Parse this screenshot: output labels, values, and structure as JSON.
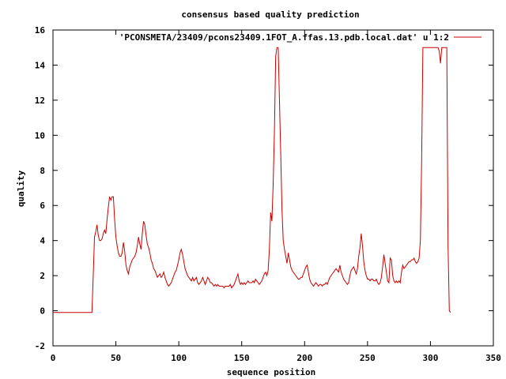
{
  "chart_data": {
    "type": "line",
    "title": "consensus based quality prediction",
    "xlabel": "sequence position",
    "ylabel": "quality",
    "xlim": [
      0,
      350
    ],
    "ylim": [
      -2,
      16
    ],
    "xticks": [
      0,
      50,
      100,
      150,
      200,
      250,
      300,
      350
    ],
    "yticks": [
      -2,
      0,
      2,
      4,
      6,
      8,
      10,
      12,
      14,
      16
    ],
    "legend_position": "top-right",
    "grid": false,
    "colors": {
      "series": "#cc0000",
      "axes": "#000000"
    },
    "series": [
      {
        "name": "'PCONSMETA/23409/pcons23409.1FOT_A.ffas.13.pdb.local.dat' u 1:2",
        "points": [
          [
            0,
            -0.1
          ],
          [
            31,
            -0.1
          ],
          [
            32,
            2.0
          ],
          [
            33,
            4.2
          ],
          [
            34,
            4.5
          ],
          [
            35,
            4.9
          ],
          [
            36,
            4.3
          ],
          [
            37,
            4.0
          ],
          [
            38,
            4.0
          ],
          [
            39,
            4.1
          ],
          [
            40,
            4.4
          ],
          [
            41,
            4.6
          ],
          [
            42,
            4.4
          ],
          [
            43,
            5.2
          ],
          [
            44,
            5.9
          ],
          [
            45,
            6.5
          ],
          [
            46,
            6.3
          ],
          [
            47,
            6.5
          ],
          [
            48,
            6.5
          ],
          [
            49,
            5.2
          ],
          [
            50,
            4.2
          ],
          [
            51,
            3.7
          ],
          [
            52,
            3.3
          ],
          [
            53,
            3.1
          ],
          [
            54,
            3.1
          ],
          [
            55,
            3.3
          ],
          [
            56,
            3.9
          ],
          [
            57,
            3.4
          ],
          [
            58,
            2.6
          ],
          [
            59,
            2.3
          ],
          [
            60,
            2.1
          ],
          [
            61,
            2.5
          ],
          [
            62,
            2.7
          ],
          [
            63,
            2.9
          ],
          [
            64,
            3.0
          ],
          [
            65,
            3.1
          ],
          [
            66,
            3.3
          ],
          [
            67,
            3.7
          ],
          [
            68,
            4.2
          ],
          [
            69,
            3.8
          ],
          [
            70,
            3.5
          ],
          [
            71,
            4.4
          ],
          [
            72,
            5.1
          ],
          [
            73,
            4.9
          ],
          [
            74,
            4.3
          ],
          [
            75,
            3.8
          ],
          [
            76,
            3.6
          ],
          [
            77,
            3.3
          ],
          [
            78,
            2.9
          ],
          [
            79,
            2.7
          ],
          [
            80,
            2.4
          ],
          [
            81,
            2.3
          ],
          [
            82,
            2.1
          ],
          [
            83,
            1.9
          ],
          [
            84,
            2.0
          ],
          [
            85,
            2.1
          ],
          [
            86,
            1.9
          ],
          [
            87,
            2.0
          ],
          [
            88,
            2.2
          ],
          [
            89,
            1.9
          ],
          [
            90,
            1.7
          ],
          [
            91,
            1.5
          ],
          [
            92,
            1.4
          ],
          [
            93,
            1.5
          ],
          [
            94,
            1.6
          ],
          [
            95,
            1.8
          ],
          [
            96,
            2.0
          ],
          [
            97,
            2.2
          ],
          [
            98,
            2.3
          ],
          [
            99,
            2.6
          ],
          [
            100,
            2.9
          ],
          [
            101,
            3.3
          ],
          [
            102,
            3.5
          ],
          [
            103,
            3.2
          ],
          [
            104,
            2.8
          ],
          [
            105,
            2.4
          ],
          [
            106,
            2.2
          ],
          [
            107,
            2.0
          ],
          [
            108,
            1.9
          ],
          [
            109,
            1.8
          ],
          [
            110,
            1.7
          ],
          [
            111,
            1.9
          ],
          [
            112,
            1.7
          ],
          [
            113,
            1.8
          ],
          [
            114,
            1.9
          ],
          [
            115,
            1.6
          ],
          [
            116,
            1.5
          ],
          [
            117,
            1.6
          ],
          [
            118,
            1.7
          ],
          [
            119,
            1.9
          ],
          [
            120,
            1.7
          ],
          [
            121,
            1.5
          ],
          [
            122,
            1.7
          ],
          [
            123,
            1.9
          ],
          [
            124,
            1.8
          ],
          [
            125,
            1.6
          ],
          [
            126,
            1.6
          ],
          [
            127,
            1.5
          ],
          [
            128,
            1.4
          ],
          [
            129,
            1.5
          ],
          [
            130,
            1.4
          ],
          [
            131,
            1.5
          ],
          [
            132,
            1.4
          ],
          [
            133,
            1.4
          ],
          [
            134,
            1.4
          ],
          [
            135,
            1.4
          ],
          [
            136,
            1.3
          ],
          [
            137,
            1.4
          ],
          [
            138,
            1.4
          ],
          [
            139,
            1.4
          ],
          [
            140,
            1.4
          ],
          [
            141,
            1.5
          ],
          [
            142,
            1.3
          ],
          [
            143,
            1.4
          ],
          [
            144,
            1.5
          ],
          [
            145,
            1.7
          ],
          [
            146,
            1.9
          ],
          [
            147,
            2.1
          ],
          [
            148,
            1.7
          ],
          [
            149,
            1.5
          ],
          [
            150,
            1.6
          ],
          [
            151,
            1.5
          ],
          [
            152,
            1.6
          ],
          [
            153,
            1.5
          ],
          [
            154,
            1.6
          ],
          [
            155,
            1.7
          ],
          [
            156,
            1.6
          ],
          [
            157,
            1.6
          ],
          [
            158,
            1.6
          ],
          [
            159,
            1.7
          ],
          [
            160,
            1.6
          ],
          [
            161,
            1.8
          ],
          [
            162,
            1.7
          ],
          [
            163,
            1.6
          ],
          [
            164,
            1.5
          ],
          [
            165,
            1.6
          ],
          [
            166,
            1.7
          ],
          [
            167,
            1.9
          ],
          [
            168,
            2.1
          ],
          [
            169,
            2.2
          ],
          [
            170,
            2.0
          ],
          [
            171,
            2.3
          ],
          [
            172,
            3.5
          ],
          [
            173,
            5.6
          ],
          [
            174,
            5.1
          ],
          [
            175,
            7.2
          ],
          [
            176,
            10.2
          ],
          [
            177,
            14.5
          ],
          [
            178,
            15.0
          ],
          [
            179,
            15.0
          ],
          [
            180,
            12.0
          ],
          [
            181,
            9.0
          ],
          [
            182,
            5.8
          ],
          [
            183,
            4.0
          ],
          [
            184,
            3.5
          ],
          [
            185,
            3.1
          ],
          [
            186,
            2.7
          ],
          [
            187,
            3.3
          ],
          [
            188,
            2.9
          ],
          [
            189,
            2.5
          ],
          [
            190,
            2.3
          ],
          [
            191,
            2.2
          ],
          [
            192,
            2.1
          ],
          [
            193,
            2.0
          ],
          [
            194,
            1.9
          ],
          [
            195,
            1.8
          ],
          [
            196,
            1.8
          ],
          [
            197,
            1.9
          ],
          [
            198,
            1.9
          ],
          [
            199,
            2.1
          ],
          [
            200,
            2.3
          ],
          [
            201,
            2.5
          ],
          [
            202,
            2.6
          ],
          [
            203,
            2.2
          ],
          [
            204,
            1.8
          ],
          [
            205,
            1.6
          ],
          [
            206,
            1.5
          ],
          [
            207,
            1.4
          ],
          [
            208,
            1.5
          ],
          [
            209,
            1.6
          ],
          [
            210,
            1.5
          ],
          [
            211,
            1.4
          ],
          [
            212,
            1.5
          ],
          [
            213,
            1.5
          ],
          [
            214,
            1.4
          ],
          [
            215,
            1.5
          ],
          [
            216,
            1.5
          ],
          [
            217,
            1.6
          ],
          [
            218,
            1.5
          ],
          [
            219,
            1.7
          ],
          [
            220,
            1.9
          ],
          [
            221,
            2.0
          ],
          [
            222,
            2.1
          ],
          [
            223,
            2.2
          ],
          [
            224,
            2.3
          ],
          [
            225,
            2.4
          ],
          [
            226,
            2.3
          ],
          [
            227,
            2.2
          ],
          [
            228,
            2.6
          ],
          [
            229,
            2.2
          ],
          [
            230,
            2.0
          ],
          [
            231,
            1.8
          ],
          [
            232,
            1.7
          ],
          [
            233,
            1.6
          ],
          [
            234,
            1.5
          ],
          [
            235,
            1.6
          ],
          [
            236,
            2.0
          ],
          [
            237,
            2.3
          ],
          [
            238,
            2.4
          ],
          [
            239,
            2.5
          ],
          [
            240,
            2.3
          ],
          [
            241,
            2.1
          ],
          [
            242,
            2.4
          ],
          [
            243,
            3.1
          ],
          [
            244,
            3.6
          ],
          [
            245,
            4.4
          ],
          [
            246,
            3.7
          ],
          [
            247,
            2.8
          ],
          [
            248,
            2.3
          ],
          [
            249,
            2.0
          ],
          [
            250,
            1.8
          ],
          [
            251,
            1.8
          ],
          [
            252,
            1.7
          ],
          [
            253,
            1.8
          ],
          [
            254,
            1.8
          ],
          [
            255,
            1.7
          ],
          [
            256,
            1.7
          ],
          [
            257,
            1.8
          ],
          [
            258,
            1.6
          ],
          [
            259,
            1.5
          ],
          [
            260,
            1.6
          ],
          [
            261,
            1.9
          ],
          [
            262,
            2.5
          ],
          [
            263,
            3.2
          ],
          [
            264,
            2.7
          ],
          [
            265,
            2.2
          ],
          [
            266,
            1.7
          ],
          [
            267,
            1.6
          ],
          [
            268,
            3.0
          ],
          [
            269,
            2.9
          ],
          [
            270,
            2.0
          ],
          [
            271,
            1.7
          ],
          [
            272,
            1.6
          ],
          [
            273,
            1.7
          ],
          [
            274,
            1.6
          ],
          [
            275,
            1.7
          ],
          [
            276,
            1.6
          ],
          [
            277,
            2.2
          ],
          [
            278,
            2.6
          ],
          [
            279,
            2.4
          ],
          [
            280,
            2.5
          ],
          [
            281,
            2.6
          ],
          [
            282,
            2.7
          ],
          [
            283,
            2.8
          ],
          [
            284,
            2.8
          ],
          [
            285,
            2.9
          ],
          [
            286,
            2.9
          ],
          [
            287,
            3.0
          ],
          [
            288,
            2.8
          ],
          [
            289,
            2.7
          ],
          [
            290,
            2.8
          ],
          [
            291,
            3.0
          ],
          [
            292,
            4.0
          ],
          [
            293,
            8.5
          ],
          [
            294,
            15.0
          ],
          [
            295,
            15.0
          ],
          [
            296,
            15.0
          ],
          [
            297,
            15.0
          ],
          [
            298,
            15.0
          ],
          [
            299,
            15.0
          ],
          [
            300,
            15.0
          ],
          [
            301,
            15.0
          ],
          [
            302,
            15.0
          ],
          [
            303,
            15.0
          ],
          [
            304,
            15.0
          ],
          [
            305,
            15.0
          ],
          [
            306,
            15.0
          ],
          [
            307,
            14.8
          ],
          [
            308,
            14.1
          ],
          [
            309,
            15.0
          ],
          [
            310,
            15.0
          ],
          [
            311,
            15.0
          ],
          [
            312,
            15.0
          ],
          [
            313,
            15.0
          ],
          [
            314,
            3.7
          ],
          [
            315,
            0.0
          ],
          [
            316,
            -0.1
          ]
        ]
      }
    ]
  }
}
